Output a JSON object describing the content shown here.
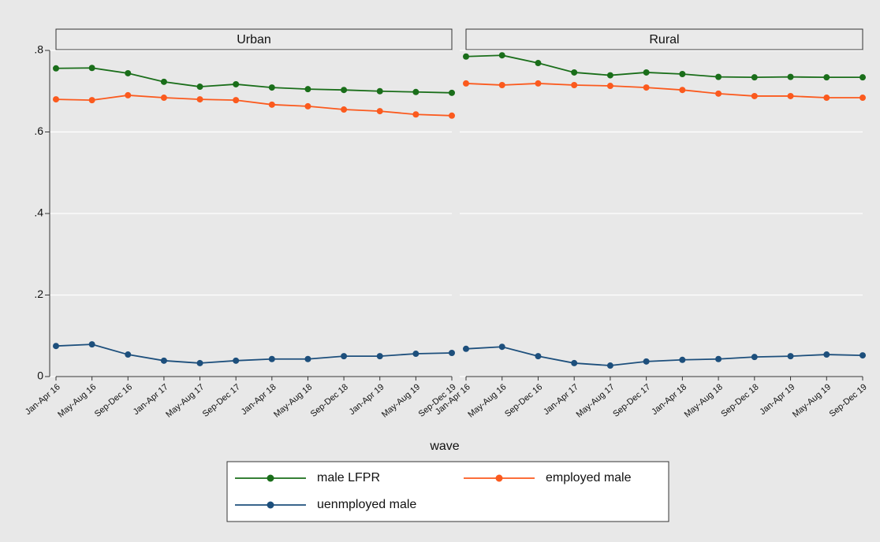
{
  "chart_data": [
    {
      "type": "line",
      "title": "Urban",
      "xlabel": "wave",
      "categories": [
        "Jan-Apr 16",
        "May-Aug 16",
        "Sep-Dec 16",
        "Jan-Apr 17",
        "May-Aug 17",
        "Sep-Dec 17",
        "Jan-Apr 18",
        "May-Aug 18",
        "Sep-Dec 18",
        "Jan-Apr 19",
        "May-Aug 19",
        "Sep-Dec 19"
      ],
      "ylim": [
        0,
        0.8
      ],
      "yticks": [
        0,
        {
          "value": 0.2,
          "label": ".2"
        },
        {
          "value": 0.4,
          "label": ".4"
        },
        {
          "value": 0.6,
          "label": ".6"
        },
        {
          "value": 0.8,
          "label": ".8"
        }
      ],
      "grid": true,
      "series": [
        {
          "name": "male LFPR",
          "color": "#1a6e1a",
          "values": [
            0.756,
            0.757,
            0.744,
            0.723,
            0.711,
            0.717,
            0.709,
            0.705,
            0.703,
            0.7,
            0.698,
            0.696
          ]
        },
        {
          "name": "employed male",
          "color": "#fb5a1e",
          "values": [
            0.68,
            0.678,
            0.69,
            0.684,
            0.68,
            0.678,
            0.667,
            0.663,
            0.655,
            0.651,
            0.643,
            0.64
          ]
        },
        {
          "name": "uenmployed male",
          "color": "#1d4f7c",
          "values": [
            0.075,
            0.079,
            0.054,
            0.039,
            0.033,
            0.039,
            0.043,
            0.043,
            0.05,
            0.05,
            0.056,
            0.058
          ]
        }
      ]
    },
    {
      "type": "line",
      "title": "Rural",
      "categories": [
        "Jan-Apr 16",
        "May-Aug 16",
        "Sep-Dec 16",
        "Jan-Apr 17",
        "May-Aug 17",
        "Sep-Dec 17",
        "Jan-Apr 18",
        "May-Aug 18",
        "Sep-Dec 18",
        "Jan-Apr 19",
        "May-Aug 19",
        "Sep-Dec 19"
      ],
      "ylim": [
        0,
        0.8
      ],
      "yticks": [
        0,
        0.2,
        0.4,
        0.6,
        0.8
      ],
      "grid": true,
      "series": [
        {
          "color": "#1a6e1a",
          "values": [
            0.785,
            0.788,
            0.769,
            0.746,
            0.739,
            0.746,
            0.742,
            0.735,
            0.734,
            0.735,
            0.734,
            0.734
          ]
        },
        {
          "color": "#fb5a1e",
          "values": [
            0.719,
            0.715,
            0.719,
            0.715,
            0.713,
            0.709,
            0.703,
            0.694,
            0.688,
            0.688,
            0.684,
            0.684
          ]
        },
        {
          "color": "#1d4f7c",
          "values": [
            0.068,
            0.073,
            0.05,
            0.033,
            0.027,
            0.037,
            0.041,
            0.043,
            0.048,
            0.05,
            0.054,
            0.052
          ]
        }
      ]
    }
  ]
}
